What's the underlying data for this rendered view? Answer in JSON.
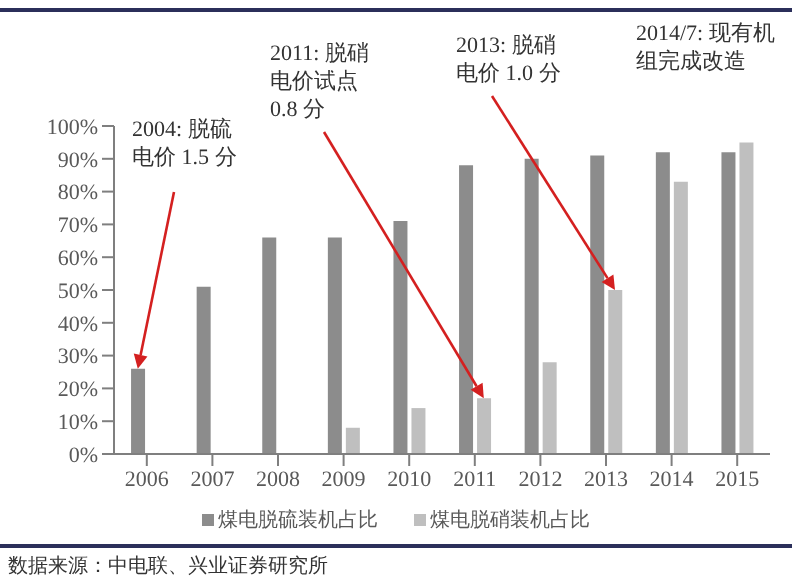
{
  "chart_data": {
    "type": "bar",
    "categories": [
      "2006",
      "2007",
      "2008",
      "2009",
      "2010",
      "2011",
      "2012",
      "2013",
      "2014",
      "2015"
    ],
    "series": [
      {
        "name": "煤电脱硫装机占比",
        "color": "#8c8c8c",
        "values": [
          26,
          51,
          66,
          66,
          71,
          88,
          90,
          91,
          92,
          92
        ]
      },
      {
        "name": "煤电脱硝装机占比",
        "color": "#bfbfbf",
        "values": [
          null,
          null,
          null,
          8,
          14,
          17,
          28,
          50,
          83,
          95
        ]
      }
    ],
    "ylim": [
      0,
      100
    ],
    "yticks": [
      {
        "value": 0,
        "label": "0%"
      },
      {
        "value": 10,
        "label": "10%"
      },
      {
        "value": 20,
        "label": "20%"
      },
      {
        "value": 30,
        "label": "30%"
      },
      {
        "value": 40,
        "label": "40%"
      },
      {
        "value": 50,
        "label": "50%"
      },
      {
        "value": 60,
        "label": "60%"
      },
      {
        "value": 70,
        "label": "70%"
      },
      {
        "value": 80,
        "label": "80%"
      },
      {
        "value": 90,
        "label": "90%"
      },
      {
        "value": 100,
        "label": "100%"
      }
    ],
    "grid": false,
    "legend": "bottom",
    "annotations": [
      {
        "text": "2004: 脱硫电价 1.5 分",
        "x": "2006",
        "y": 26
      },
      {
        "text": "2011: 脱硝电价试点 0.8 分",
        "x": "2011",
        "y": 17
      },
      {
        "text": "2013: 脱硝电价 1.0 分",
        "x": "2013",
        "y": 50
      },
      "2014/7: 现有机组完成改造",
      "数据来源：中电联、兴业证券研究所"
    ]
  }
}
